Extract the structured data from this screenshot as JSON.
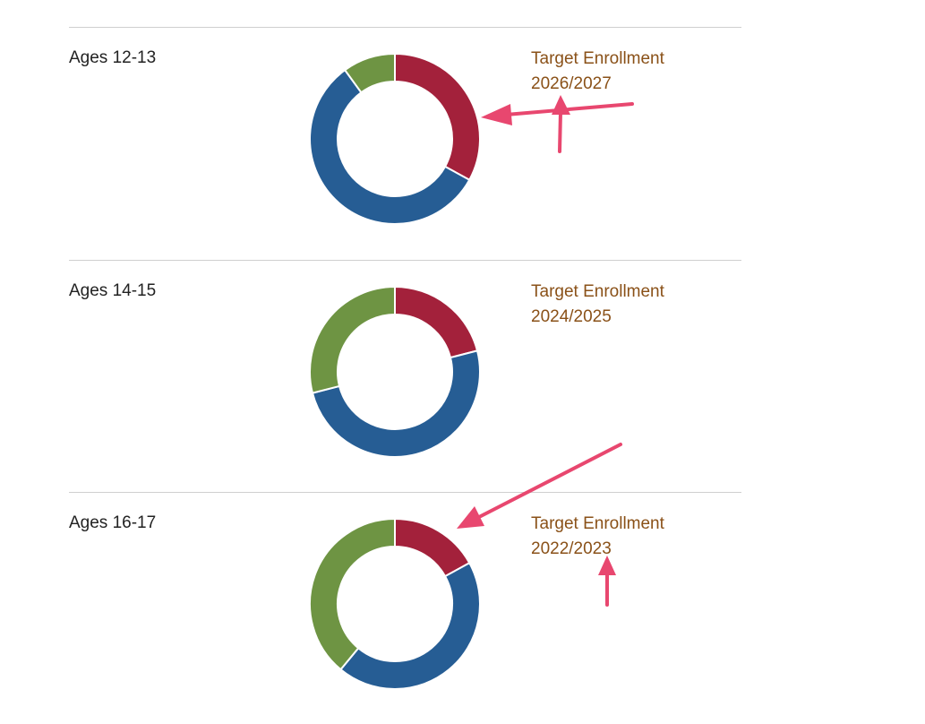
{
  "colors": {
    "red": "#a3213b",
    "blue": "#265d94",
    "green": "#6e9443",
    "heading": "#8a5118",
    "annotation_arrow": "#e8476f"
  },
  "sections": [
    {
      "age_label": "Ages 12-13",
      "target_title": "Target Enrollment",
      "target_year": "2026/2027"
    },
    {
      "age_label": "Ages 14-15",
      "target_title": "Target Enrollment",
      "target_year": "2024/2025"
    },
    {
      "age_label": "Ages 16-17",
      "target_title": "Target Enrollment",
      "target_year": "2022/2023"
    }
  ],
  "chart_data": [
    {
      "type": "pie",
      "donut": true,
      "labels": [
        "red",
        "blue",
        "green"
      ],
      "values": [
        33,
        57,
        10
      ],
      "colors": [
        "#a3213b",
        "#265d94",
        "#6e9443"
      ]
    },
    {
      "type": "pie",
      "donut": true,
      "labels": [
        "red",
        "blue",
        "green"
      ],
      "values": [
        21,
        50,
        29
      ],
      "colors": [
        "#a3213b",
        "#265d94",
        "#6e9443"
      ]
    },
    {
      "type": "pie",
      "donut": true,
      "labels": [
        "red",
        "blue",
        "green"
      ],
      "values": [
        17,
        44,
        39
      ],
      "colors": [
        "#a3213b",
        "#265d94",
        "#6e9443"
      ]
    }
  ]
}
